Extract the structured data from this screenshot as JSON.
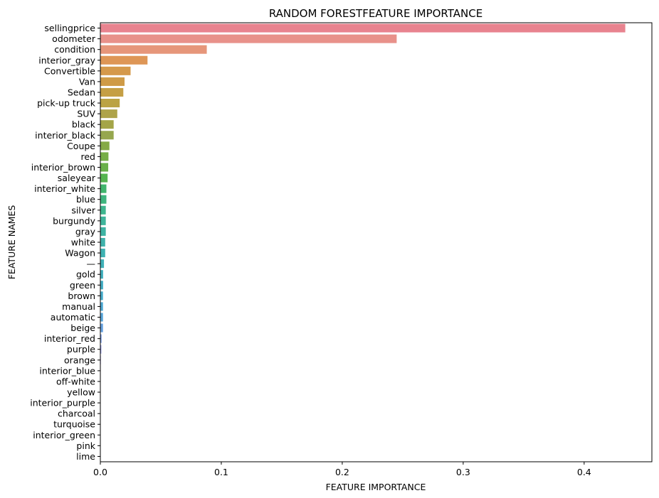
{
  "chart_data": {
    "type": "bar",
    "orientation": "horizontal",
    "title": "RANDOM FORESTFEATURE IMPORTANCE",
    "xlabel": "FEATURE IMPORTANCE",
    "ylabel": "FEATURE NAMES",
    "xlim": [
      0,
      0.456
    ],
    "xticks": [
      0.0,
      0.1,
      0.2,
      0.3,
      0.4
    ],
    "xtick_labels": [
      "0.0",
      "0.1",
      "0.2",
      "0.3",
      "0.4"
    ],
    "grid": false,
    "categories": [
      "sellingprice",
      "odometer",
      "condition",
      "interior_gray",
      "Convertible",
      "Van",
      "Sedan",
      "pick-up truck",
      "SUV",
      "black",
      "interior_black",
      "Coupe",
      "red",
      "interior_brown",
      "saleyear",
      "interior_white",
      "blue",
      "silver",
      "burgundy",
      "gray",
      "white",
      "Wagon",
      "—",
      "gold",
      "green",
      "brown",
      "manual",
      "automatic",
      "beige",
      "interior_red",
      "purple",
      "orange",
      "interior_blue",
      "off-white",
      "yellow",
      "interior_purple",
      "charcoal",
      "turquoise",
      "interior_green",
      "pink",
      "lime"
    ],
    "values": [
      0.434,
      0.245,
      0.088,
      0.039,
      0.025,
      0.02,
      0.019,
      0.016,
      0.014,
      0.011,
      0.011,
      0.0075,
      0.0067,
      0.0065,
      0.006,
      0.005,
      0.005,
      0.0045,
      0.0045,
      0.0045,
      0.004,
      0.004,
      0.003,
      0.0023,
      0.0023,
      0.0022,
      0.0022,
      0.0022,
      0.0022,
      0.001,
      0.0008,
      0.0004,
      0.0003,
      0.0002,
      0.0002,
      0.0002,
      0.0001,
      0.0001,
      0.0001,
      0.0001,
      0.0001
    ],
    "colors": [
      "#e8838f",
      "#e8918a",
      "#e6967a",
      "#de9656",
      "#d5994b",
      "#cf9b47",
      "#c59f45",
      "#bba344",
      "#aea34a",
      "#a4a548",
      "#96a74e",
      "#85aa47",
      "#76ae47",
      "#69b049",
      "#56b450",
      "#41b56d",
      "#3fb57e",
      "#3fb58e",
      "#3fb49b",
      "#3eb3a3",
      "#40b2ab",
      "#3fb2b2",
      "#40b1b8",
      "#41b0be",
      "#44aec5",
      "#48adcc",
      "#4ea9d4",
      "#58a6da",
      "#66a1df",
      "#799be3",
      "#8d94e5",
      "#a08ce5",
      "#b285e2",
      "#c07fdc",
      "#cc79d5",
      "#d674cc",
      "#de72c0",
      "#e372b4",
      "#e675a6",
      "#e87899",
      "#e87b8f"
    ]
  }
}
